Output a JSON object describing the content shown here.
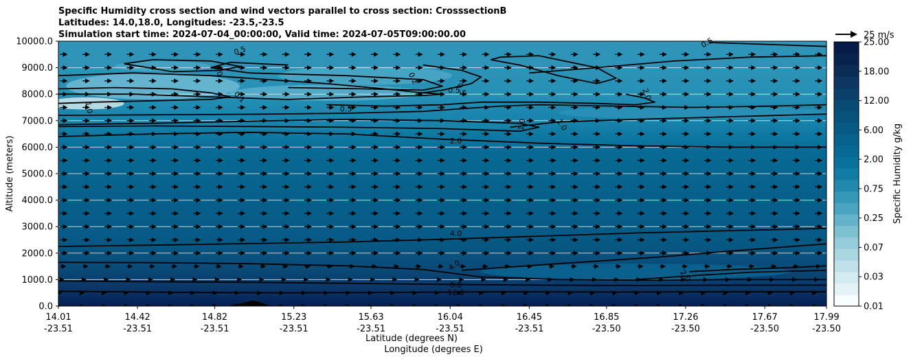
{
  "chart_data": {
    "type": "contour",
    "title": [
      "Specific Humidity cross section and wind vectors parallel to cross section: CrosssectionB",
      "Latitudes: 14.0,18.0, Longitudes: -23.5,-23.5",
      "Simulation start time: 2024-07-04_00:00:00, Valid time: 2024-07-05T09:00:00.00"
    ],
    "xlabel": "Latitude (degrees N)",
    "xlabel2": "Longitude (degrees E)",
    "ylabel": "Altitude (meters)",
    "ylim": [
      0,
      10000
    ],
    "yticks": [
      "0.0",
      "1000.0",
      "2000.0",
      "3000.0",
      "4000.0",
      "5000.0",
      "6000.0",
      "7000.0",
      "8000.0",
      "9000.0",
      "10000.0"
    ],
    "xticks": [
      {
        "lat": "14.01",
        "lon": "-23.51"
      },
      {
        "lat": "14.42",
        "lon": "-23.51"
      },
      {
        "lat": "14.82",
        "lon": "-23.51"
      },
      {
        "lat": "15.23",
        "lon": "-23.51"
      },
      {
        "lat": "15.63",
        "lon": "-23.51"
      },
      {
        "lat": "16.04",
        "lon": "-23.51"
      },
      {
        "lat": "16.45",
        "lon": "-23.51"
      },
      {
        "lat": "16.85",
        "lon": "-23.50"
      },
      {
        "lat": "17.26",
        "lon": "-23.50"
      },
      {
        "lat": "17.67",
        "lon": "-23.50"
      },
      {
        "lat": "17.99",
        "lon": "-23.50"
      }
    ],
    "colorbar": {
      "label": "Specific Humidity g/kg",
      "ticks": [
        "0.01",
        "0.03",
        "0.07",
        "0.25",
        "0.75",
        "2.00",
        "6.00",
        "12.00",
        "18.00",
        "25.00"
      ],
      "colors": [
        "#f7fcfd",
        "#e6f3f6",
        "#d3eaf0",
        "#bfe0e9",
        "#aad6e1",
        "#95cbda",
        "#7dc0d2",
        "#65b3ca",
        "#4ba5c0",
        "#3498b7",
        "#2189ac",
        "#127da4",
        "#0a739c",
        "#086a94",
        "#07628c",
        "#075a83",
        "#07527a",
        "#084a72",
        "#0a4069",
        "#0b3660",
        "#0b2c57",
        "#09234f",
        "#061a47"
      ]
    },
    "quiver_key": "25 m/s",
    "contour_labels": [
      {
        "text": "0.5",
        "x": 14.95,
        "y": 9650,
        "rot": 20
      },
      {
        "text": "1.0",
        "x": 14.84,
        "y": 8900,
        "rot": -70
      },
      {
        "text": "1.0",
        "x": 14.17,
        "y": 7500,
        "rot": -80
      },
      {
        "text": "0.1",
        "x": 14.95,
        "y": 7900,
        "rot": -45
      },
      {
        "text": "0.5",
        "x": 15.5,
        "y": 7450,
        "rot": 0
      },
      {
        "text": "0.2",
        "x": 15.85,
        "y": 8600,
        "rot": -65
      },
      {
        "text": "0.5",
        "x": 16.06,
        "y": 8150,
        "rot": 0
      },
      {
        "text": "0.5",
        "x": 16.1,
        "y": 8200,
        "rot": -70
      },
      {
        "text": "0.5",
        "x": 17.37,
        "y": 9950,
        "rot": 30
      },
      {
        "text": "2.0",
        "x": 17.06,
        "y": 8000,
        "rot": -70
      },
      {
        "text": "1.0",
        "x": 16.41,
        "y": 6850,
        "rot": 80
      },
      {
        "text": "1.0",
        "x": 16.62,
        "y": 6850,
        "rot": -55
      },
      {
        "text": "2.0",
        "x": 16.07,
        "y": 6250,
        "rot": 0
      },
      {
        "text": "4.0",
        "x": 16.07,
        "y": 2750,
        "rot": 0
      },
      {
        "text": "4.0",
        "x": 16.06,
        "y": 1550,
        "rot": 35
      },
      {
        "text": "2.0",
        "x": 17.26,
        "y": 1150,
        "rot": -55
      },
      {
        "text": "8.0",
        "x": 16.07,
        "y": 800,
        "rot": 0
      },
      {
        "text": "12.0",
        "x": 16.07,
        "y": 520,
        "rot": 0
      }
    ],
    "contours": [
      {
        "level": "12.0",
        "x": [
          14.01,
          14.6,
          15.2,
          15.8,
          16.3,
          16.9,
          17.5,
          17.99
        ],
        "y": [
          560,
          520,
          500,
          520,
          540,
          530,
          540,
          540
        ]
      },
      {
        "level": "8.0",
        "x": [
          14.01,
          14.5,
          15.0,
          15.5,
          16.0,
          16.5,
          17.0,
          17.5,
          17.99
        ],
        "y": [
          950,
          920,
          900,
          860,
          820,
          790,
          780,
          790,
          790
        ]
      },
      {
        "level": "4.0",
        "x": [
          14.01,
          14.5,
          15.0,
          15.5,
          15.9,
          16.2,
          16.6,
          17.1,
          17.5,
          17.99
        ],
        "y": [
          1650,
          1640,
          1600,
          1520,
          1380,
          1100,
          1000,
          980,
          1000,
          1000
        ]
      },
      {
        "level": "4.0",
        "x": [
          14.01,
          14.5,
          15.0,
          15.5,
          16.0,
          16.5,
          17.0,
          17.5,
          17.99
        ],
        "y": [
          2250,
          2300,
          2360,
          2420,
          2520,
          2640,
          2760,
          2850,
          2930
        ]
      },
      {
        "level": "2.0",
        "x": [
          16.1,
          16.6,
          17.1,
          17.5,
          17.99
        ],
        "y": [
          1350,
          1600,
          1840,
          2080,
          2350
        ]
      },
      {
        "level": "2.0",
        "x": [
          17.28,
          17.5,
          17.8,
          17.99
        ],
        "y": [
          1300,
          1380,
          1450,
          1520
        ]
      },
      {
        "level": "2.0",
        "x": [
          17.0,
          17.3,
          17.6,
          17.99
        ],
        "y": [
          1000,
          1150,
          1280,
          1350
        ]
      },
      {
        "level": "2.0",
        "x": [
          14.01,
          14.5,
          15.0,
          15.5,
          16.0,
          16.5,
          17.0,
          17.5,
          17.99
        ],
        "y": [
          6400,
          6500,
          6560,
          6500,
          6300,
          6150,
          6050,
          6000,
          6000
        ]
      },
      {
        "level": "1.0",
        "x": [
          14.01,
          14.5,
          15.0,
          15.5,
          16.0,
          16.4,
          16.5,
          16.4,
          16.0,
          15.5,
          15.0,
          14.5,
          14.01
        ],
        "y": [
          6850,
          6900,
          6980,
          7050,
          7000,
          6900,
          6750,
          6600,
          6700,
          6750,
          6780,
          6800,
          6780
        ]
      },
      {
        "level": "1.0",
        "x": [
          16.35,
          16.6,
          17.0,
          17.5,
          17.99
        ],
        "y": [
          6750,
          6950,
          7050,
          7150,
          7250
        ]
      },
      {
        "level": "0.5",
        "x": [
          14.01,
          14.5,
          15.0,
          15.5,
          15.9,
          16.1,
          16.3,
          16.5,
          16.9,
          17.3,
          17.7,
          17.99
        ],
        "y": [
          7200,
          7220,
          7240,
          7280,
          7350,
          7450,
          7550,
          7600,
          7550,
          7500,
          7550,
          7600
        ]
      },
      {
        "level": "0.1",
        "x": [
          14.01,
          14.3,
          14.6,
          14.8,
          14.9,
          14.8,
          14.5,
          14.2,
          14.01
        ],
        "y": [
          8200,
          8250,
          8200,
          8050,
          7900,
          7800,
          7750,
          7700,
          7650
        ]
      },
      {
        "level": "0.2",
        "x": [
          14.01,
          14.4,
          14.8,
          15.1,
          15.4,
          15.7,
          15.9,
          16.0,
          15.9,
          15.6,
          15.2,
          14.8,
          14.4,
          14.01
        ],
        "y": [
          8700,
          8800,
          8700,
          8550,
          8400,
          8200,
          8050,
          8000,
          7950,
          7900,
          7800,
          7900,
          8000,
          8000
        ]
      },
      {
        "level": "0.5",
        "x": [
          15.9,
          16.1,
          16.2,
          16.15,
          16.0,
          15.9
        ],
        "y": [
          9100,
          8900,
          8650,
          8400,
          8150,
          8050
        ]
      },
      {
        "level": "0.5",
        "x": [
          15.2,
          15.6,
          15.9,
          16.0,
          15.9,
          15.5,
          15.0,
          14.8,
          14.9,
          15.2
        ],
        "y": [
          8250,
          8200,
          8150,
          8300,
          8550,
          8700,
          8800,
          9000,
          9200,
          9100
        ]
      },
      {
        "level": "1.0",
        "x": [
          14.35,
          14.5,
          14.8,
          14.95,
          14.85,
          14.6,
          14.35
        ],
        "y": [
          9150,
          9300,
          9250,
          9050,
          8900,
          8850,
          9150
        ]
      },
      {
        "level": "1.0",
        "x": [
          16.25,
          16.3,
          16.5,
          16.8,
          16.9,
          16.8,
          16.6,
          16.4,
          16.25
        ],
        "y": [
          9300,
          9400,
          9450,
          9000,
          8600,
          8400,
          8700,
          9100,
          9300
        ]
      },
      {
        "level": "0.5",
        "x": [
          17.38,
          17.6,
          17.8,
          17.99
        ],
        "y": [
          9950,
          9900,
          9850,
          9800
        ]
      },
      {
        "level": "2.0",
        "x": [
          16.95,
          17.05,
          17.1,
          17.0,
          16.8,
          16.5,
          16.2,
          16.0,
          15.7,
          15.4
        ],
        "y": [
          8000,
          7850,
          7700,
          7600,
          7650,
          7700,
          7700,
          7600,
          7550,
          7600
        ]
      },
      {
        "level": "2.0",
        "x": [
          16.45,
          16.8,
          17.2,
          17.6,
          17.99
        ],
        "y": [
          8800,
          9000,
          9250,
          9400,
          9450
        ]
      }
    ]
  }
}
